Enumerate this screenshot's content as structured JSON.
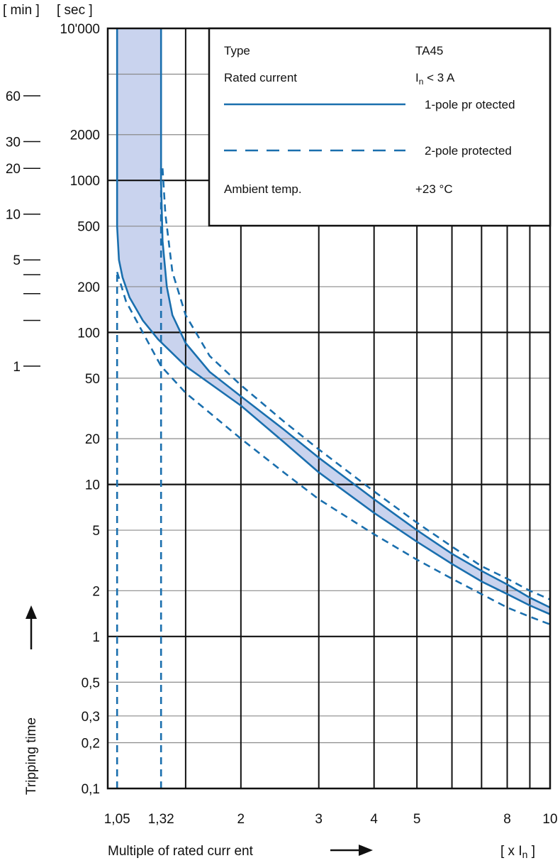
{
  "chart_data": {
    "type": "line",
    "x_scale": "log",
    "y_scale": "log",
    "xlim": [
      1,
      10
    ],
    "ylim": [
      0.1,
      10000
    ],
    "grid": true,
    "y_unit_labels": {
      "min": "[ min ]",
      "sec": "[ sec ]"
    },
    "x_unit_label": {
      "prefix": "[ x I",
      "sub": "n",
      "suffix": " ]"
    },
    "xlabel": "Multiple of rated curr ent",
    "ylabel": "Tripping time",
    "x_ticks": [
      {
        "value": 1.05,
        "label": "1,05"
      },
      {
        "value": 1.32,
        "label": "1,32"
      },
      {
        "value": 2,
        "label": "2"
      },
      {
        "value": 3,
        "label": "3"
      },
      {
        "value": 4,
        "label": "4"
      },
      {
        "value": 5,
        "label": "5"
      },
      {
        "value": 8,
        "label": "8"
      },
      {
        "value": 10,
        "label": "10"
      }
    ],
    "x_grid": [
      1,
      1.5,
      2,
      3,
      4,
      5,
      6,
      7,
      8,
      9,
      10
    ],
    "y_ticks_sec": [
      {
        "value": 10000,
        "label": "10'000"
      },
      {
        "value": 2000,
        "label": "2000"
      },
      {
        "value": 1000,
        "label": "1000"
      },
      {
        "value": 500,
        "label": "500"
      },
      {
        "value": 200,
        "label": "200"
      },
      {
        "value": 100,
        "label": "100"
      },
      {
        "value": 50,
        "label": "50"
      },
      {
        "value": 20,
        "label": "20"
      },
      {
        "value": 10,
        "label": "10"
      },
      {
        "value": 5,
        "label": "5"
      },
      {
        "value": 2,
        "label": "2"
      },
      {
        "value": 1,
        "label": "1"
      },
      {
        "value": 0.5,
        "label": "0,5"
      },
      {
        "value": 0.3,
        "label": "0,3"
      },
      {
        "value": 0.2,
        "label": "0,2"
      },
      {
        "value": 0.1,
        "label": "0,1"
      }
    ],
    "y_ticks_min": [
      {
        "value": 3600,
        "label": "60"
      },
      {
        "value": 1800,
        "label": "30"
      },
      {
        "value": 1200,
        "label": "20"
      },
      {
        "value": 600,
        "label": "10"
      },
      {
        "value": 300,
        "label": "5"
      },
      {
        "value": 240,
        "label": ""
      },
      {
        "value": 180,
        "label": ""
      },
      {
        "value": 120,
        "label": ""
      },
      {
        "value": 60,
        "label": "1"
      }
    ],
    "y_major_grid": [
      1000,
      100,
      10,
      1
    ],
    "y_minor_grid": [
      5000,
      2000,
      500,
      200,
      50,
      20,
      5,
      2,
      0.5,
      0.3,
      0.2
    ],
    "legend": {
      "rows": [
        {
          "label": "Type",
          "value": "TA45"
        },
        {
          "label": "Rated current",
          "value_prefix": "I",
          "value_sub": "n",
          "value_suffix": " < 3 A"
        },
        {
          "line": "solid",
          "label": "1-pole pr otected"
        },
        {
          "line": "dashed",
          "label": "2-pole protected"
        },
        {
          "label": "Ambient temp.",
          "value": "+23 °C"
        }
      ]
    },
    "series": [
      {
        "name": "1-pole pr otected",
        "style": "solid",
        "curves": [
          [
            [
              1.05,
              10000
            ],
            [
              1.05,
              2000
            ],
            [
              1.05,
              500
            ],
            [
              1.06,
              300
            ],
            [
              1.08,
              230
            ],
            [
              1.12,
              170
            ],
            [
              1.2,
              120
            ],
            [
              1.3,
              90
            ],
            [
              1.5,
              60
            ],
            [
              2,
              33
            ],
            [
              2.5,
              19
            ],
            [
              3,
              12
            ],
            [
              4,
              6.5
            ],
            [
              5,
              4.2
            ],
            [
              6,
              3.0
            ],
            [
              7,
              2.3
            ],
            [
              8,
              1.9
            ],
            [
              9,
              1.6
            ],
            [
              10,
              1.4
            ]
          ],
          [
            [
              1.32,
              10000
            ],
            [
              1.32,
              1000
            ],
            [
              1.33,
              400
            ],
            [
              1.36,
              200
            ],
            [
              1.4,
              130
            ],
            [
              1.5,
              85
            ],
            [
              1.7,
              55
            ],
            [
              2,
              38
            ],
            [
              2.5,
              23
            ],
            [
              3,
              15
            ],
            [
              4,
              8.0
            ],
            [
              5,
              5.0
            ],
            [
              6,
              3.5
            ],
            [
              7,
              2.7
            ],
            [
              8,
              2.2
            ],
            [
              9,
              1.8
            ],
            [
              10,
              1.55
            ]
          ]
        ]
      },
      {
        "name": "2-pole protected",
        "style": "dashed",
        "curves": [
          [
            [
              1.05,
              250
            ],
            [
              1.1,
              160
            ],
            [
              1.2,
              100
            ],
            [
              1.32,
              60
            ],
            [
              1.5,
              40
            ],
            [
              2,
              20
            ],
            [
              2.5,
              12
            ],
            [
              3,
              8.0
            ],
            [
              4,
              4.7
            ],
            [
              5,
              3.2
            ],
            [
              6,
              2.4
            ],
            [
              7,
              1.9
            ],
            [
              8,
              1.55
            ],
            [
              9,
              1.35
            ],
            [
              10,
              1.2
            ]
          ],
          [
            [
              1.33,
              1200
            ],
            [
              1.35,
              600
            ],
            [
              1.4,
              250
            ],
            [
              1.5,
              130
            ],
            [
              1.7,
              70
            ],
            [
              2,
              45
            ],
            [
              2.5,
              26
            ],
            [
              3,
              17
            ],
            [
              4,
              9.0
            ],
            [
              5,
              5.6
            ],
            [
              6,
              3.9
            ],
            [
              7,
              2.9
            ],
            [
              8,
              2.4
            ],
            [
              9,
              2.0
            ],
            [
              10,
              1.75
            ]
          ]
        ]
      },
      {
        "name": "",
        "style": "dashed-vertical",
        "curves": [
          [
            [
              1.05,
              0.1
            ],
            [
              1.05,
              250
            ]
          ],
          [
            [
              1.32,
              0.1
            ],
            [
              1.32,
              1200
            ]
          ]
        ]
      }
    ],
    "band": {
      "upper": [
        [
          1.32,
          10000
        ],
        [
          1.32,
          1000
        ],
        [
          1.33,
          400
        ],
        [
          1.36,
          200
        ],
        [
          1.4,
          130
        ],
        [
          1.5,
          85
        ],
        [
          1.7,
          55
        ],
        [
          2,
          38
        ],
        [
          2.5,
          23
        ],
        [
          3,
          15
        ],
        [
          4,
          8.0
        ],
        [
          5,
          5.0
        ],
        [
          6,
          3.5
        ],
        [
          7,
          2.7
        ],
        [
          8,
          2.2
        ],
        [
          9,
          1.8
        ],
        [
          10,
          1.55
        ]
      ],
      "lower": [
        [
          1.05,
          10000
        ],
        [
          1.05,
          2000
        ],
        [
          1.05,
          500
        ],
        [
          1.06,
          300
        ],
        [
          1.08,
          230
        ],
        [
          1.12,
          170
        ],
        [
          1.2,
          120
        ],
        [
          1.3,
          90
        ],
        [
          1.5,
          60
        ],
        [
          2,
          33
        ],
        [
          2.5,
          19
        ],
        [
          3,
          12
        ],
        [
          4,
          6.5
        ],
        [
          5,
          4.2
        ],
        [
          6,
          3.0
        ],
        [
          7,
          2.3
        ],
        [
          8,
          1.9
        ],
        [
          9,
          1.6
        ],
        [
          10,
          1.4
        ]
      ]
    },
    "colors": {
      "curve": "#1a6fae",
      "band": "#c9d3ee",
      "grid_major": "#111111",
      "grid_minor": "#8a8a8a"
    }
  }
}
